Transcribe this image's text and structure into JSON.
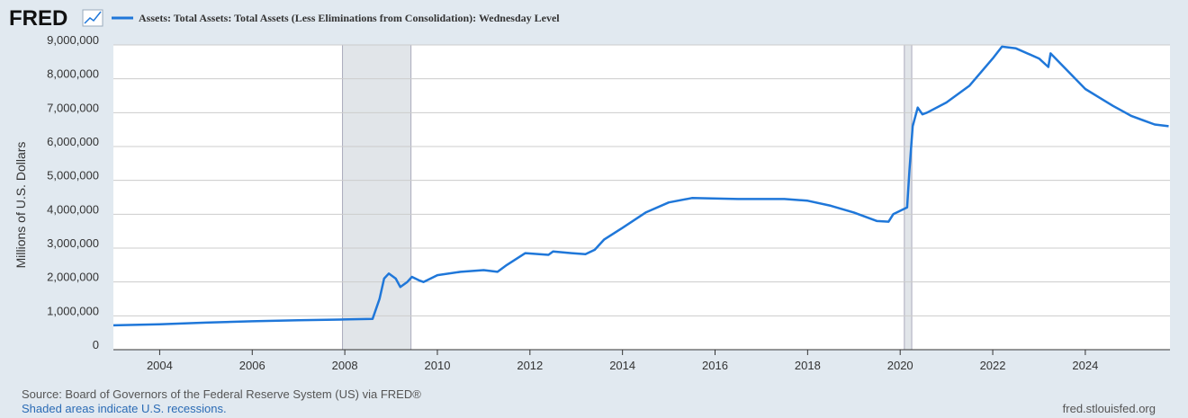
{
  "brand": "FRED",
  "chart_data": {
    "type": "line",
    "series": [
      {
        "name": "Assets: Total Assets: Total Assets (Less Eliminations from Consolidation): Wednesday Level",
        "color": "#1f77d9",
        "x": [
          2003.0,
          2004.0,
          2005.0,
          2006.0,
          2007.0,
          2007.9,
          2008.6,
          2008.75,
          2008.85,
          2008.95,
          2009.1,
          2009.2,
          2009.35,
          2009.45,
          2009.6,
          2009.7,
          2010.0,
          2010.5,
          2011.0,
          2011.3,
          2011.5,
          2011.9,
          2012.4,
          2012.5,
          2012.9,
          2013.2,
          2013.4,
          2013.6,
          2014.0,
          2014.5,
          2015.0,
          2015.5,
          2016.5,
          2017.5,
          2018.0,
          2018.5,
          2019.0,
          2019.5,
          2019.75,
          2019.85,
          2020.15,
          2020.2,
          2020.27,
          2020.38,
          2020.48,
          2020.58,
          2021.0,
          2021.5,
          2022.0,
          2022.2,
          2022.5,
          2023.0,
          2023.2,
          2023.25,
          2023.5,
          2024.0,
          2024.3,
          2024.6,
          2025.0,
          2025.5,
          2025.8
        ],
        "values": [
          720000,
          750000,
          800000,
          840000,
          870000,
          890000,
          910000,
          1500000,
          2100000,
          2250000,
          2100000,
          1850000,
          2000000,
          2150000,
          2050000,
          2000000,
          2200000,
          2300000,
          2350000,
          2300000,
          2500000,
          2850000,
          2800000,
          2900000,
          2850000,
          2820000,
          2950000,
          3250000,
          3600000,
          4050000,
          4350000,
          4480000,
          4450000,
          4450000,
          4400000,
          4250000,
          4050000,
          3800000,
          3780000,
          4000000,
          4200000,
          5300000,
          6600000,
          7150000,
          6950000,
          7000000,
          7300000,
          7800000,
          8600000,
          8950000,
          8900000,
          8600000,
          8350000,
          8750000,
          8400000,
          7700000,
          7450000,
          7200000,
          6900000,
          6650000,
          6600000
        ]
      }
    ],
    "ylabel": "Millions of U.S. Dollars",
    "xlim": [
      2003.0,
      2025.83
    ],
    "ylim": [
      0,
      9000000
    ],
    "xticks": [
      2004,
      2006,
      2008,
      2010,
      2012,
      2014,
      2016,
      2018,
      2020,
      2022,
      2024
    ],
    "yticks": [
      0,
      {
        "value": 1000000,
        "label": "1,000,000"
      },
      {
        "value": 2000000,
        "label": "2,000,000"
      },
      {
        "value": 3000000,
        "label": "3,000,000"
      },
      {
        "value": 4000000,
        "label": "4,000,000"
      },
      {
        "value": 5000000,
        "label": "5,000,000"
      },
      {
        "value": 6000000,
        "label": "6,000,000"
      },
      {
        "value": 7000000,
        "label": "7,000,000"
      },
      {
        "value": 8000000,
        "label": "8,000,000"
      },
      {
        "value": 9000000,
        "label": "9,000,000"
      }
    ],
    "grid": true,
    "recessions": [
      [
        2007.95,
        2009.43
      ],
      [
        2020.09,
        2020.25
      ]
    ],
    "recession_color": "#e1e5e9"
  },
  "footer": {
    "source": "Source: Board of Governors of the Federal Reserve System (US) via FRED®",
    "note": "Shaded areas indicate U.S. recessions.",
    "site": "fred.stlouisfed.org"
  }
}
